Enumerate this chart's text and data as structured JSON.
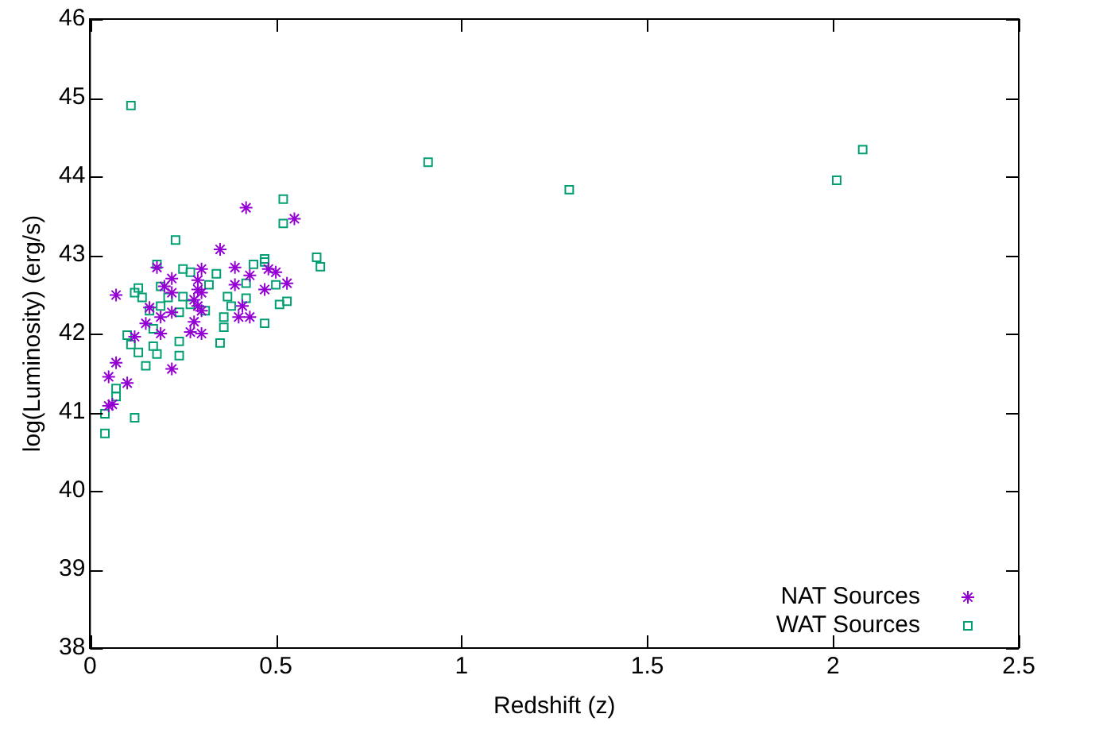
{
  "chart_data": {
    "type": "scatter",
    "xlabel": "Redshift (z)",
    "ylabel": "log(Luminosity) (erg/s)",
    "xlim": [
      0,
      2.5
    ],
    "xticks": [
      0,
      0.5,
      1,
      1.5,
      2,
      2.5
    ],
    "ylim": [
      38,
      46
    ],
    "yticks": [
      38,
      39,
      40,
      41,
      42,
      43,
      44,
      45,
      46
    ],
    "grid": false,
    "legend": "bottom right",
    "series": [
      {
        "name": "NAT Sources",
        "color": "#9400d3",
        "marker": "cross",
        "x": [
          0.07,
          0.18,
          0.42,
          0.55,
          0.35,
          0.3,
          0.39,
          0.48,
          0.5,
          0.43,
          0.53,
          0.22,
          0.29,
          0.39,
          0.47,
          0.2,
          0.22,
          0.29,
          0.3,
          0.28,
          0.16,
          0.29,
          0.22,
          0.3,
          0.41,
          0.19,
          0.15,
          0.28,
          0.4,
          0.43,
          0.12,
          0.19,
          0.27,
          0.3,
          0.07,
          0.05,
          0.1,
          0.22,
          0.05,
          0.06
        ],
        "values": [
          42.49,
          42.84,
          43.6,
          43.46,
          43.07,
          42.82,
          42.84,
          42.82,
          42.78,
          42.74,
          42.64,
          42.7,
          42.68,
          42.62,
          42.56,
          42.6,
          42.52,
          42.56,
          42.52,
          42.43,
          42.33,
          42.35,
          42.27,
          42.29,
          42.35,
          42.21,
          42.13,
          42.15,
          42.21,
          42.21,
          41.96,
          42.0,
          42.02,
          42.0,
          41.63,
          41.45,
          41.37,
          41.55,
          41.08,
          41.1
        ]
      },
      {
        "name": "WAT Sources",
        "color": "#009e73",
        "marker": "square",
        "x": [
          0.11,
          0.91,
          1.29,
          2.01,
          2.08,
          0.52,
          0.52,
          0.23,
          0.61,
          0.62,
          0.47,
          0.47,
          0.44,
          0.18,
          0.25,
          0.27,
          0.34,
          0.32,
          0.42,
          0.5,
          0.53,
          0.51,
          0.12,
          0.13,
          0.14,
          0.19,
          0.21,
          0.25,
          0.27,
          0.31,
          0.37,
          0.38,
          0.42,
          0.16,
          0.19,
          0.24,
          0.36,
          0.36,
          0.47,
          0.17,
          0.1,
          0.11,
          0.13,
          0.17,
          0.18,
          0.24,
          0.24,
          0.35,
          0.15,
          0.07,
          0.07,
          0.04,
          0.12,
          0.04
        ],
        "values": [
          44.9,
          44.18,
          43.83,
          43.95,
          44.34,
          43.71,
          43.4,
          43.19,
          42.97,
          42.85,
          42.95,
          42.91,
          42.88,
          42.88,
          42.82,
          42.78,
          42.76,
          42.62,
          42.64,
          42.62,
          42.41,
          42.37,
          42.52,
          42.58,
          42.46,
          42.6,
          42.46,
          42.47,
          42.37,
          42.29,
          42.47,
          42.35,
          42.45,
          42.29,
          42.35,
          42.27,
          42.21,
          42.08,
          42.13,
          42.06,
          41.98,
          41.86,
          41.76,
          41.84,
          41.74,
          41.9,
          41.72,
          41.88,
          41.59,
          41.3,
          41.2,
          40.98,
          40.93,
          40.73
        ]
      }
    ]
  }
}
